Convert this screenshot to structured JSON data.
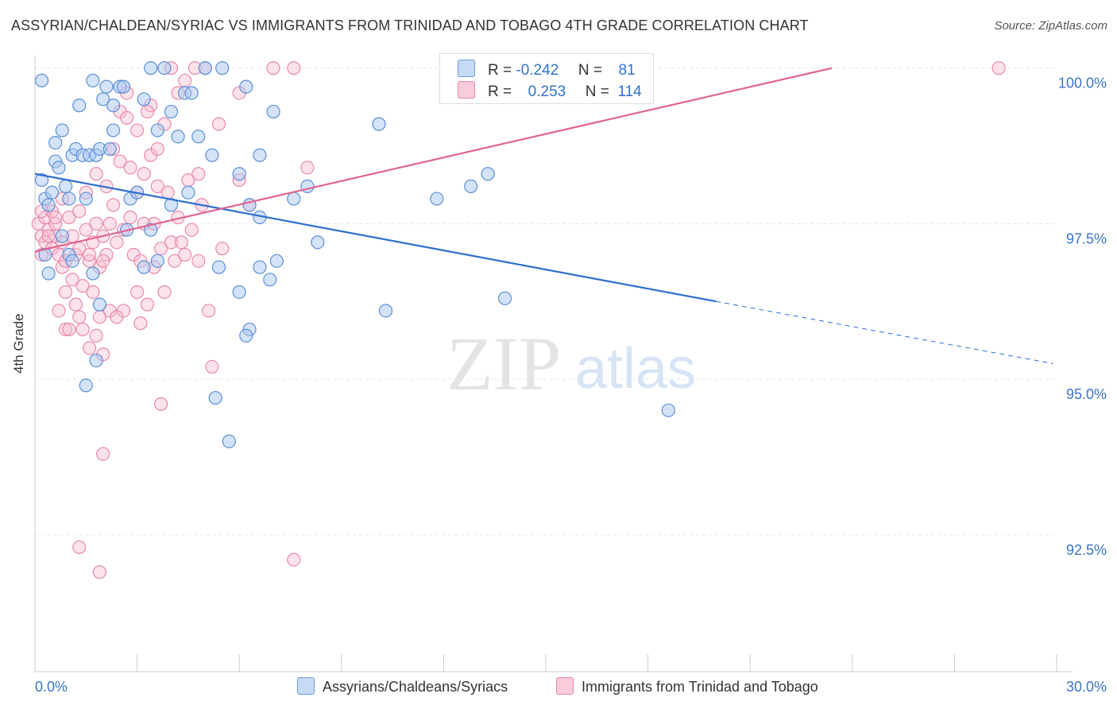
{
  "title": "ASSYRIAN/CHALDEAN/SYRIAC VS IMMIGRANTS FROM TRINIDAD AND TOBAGO 4TH GRADE CORRELATION CHART",
  "source": "Source: ZipAtlas.com",
  "watermark": {
    "zip": "ZIP",
    "atlas": "atlas"
  },
  "colors": {
    "blue_fill": "#aac8f0",
    "blue_stroke": "#5b8fd6",
    "blue_line": "#2f6fd0",
    "pink_fill": "#f7bfd2",
    "pink_stroke": "#e889aa",
    "pink_line": "#e06590",
    "axis_text": "#3a74c8",
    "grid": "#e6e6e6"
  },
  "legend": {
    "rows": [
      {
        "r_label": "R =",
        "r_value": "-0.242",
        "n_label": "N =",
        "n_value": "81"
      },
      {
        "r_label": "R =",
        "r_value": "0.253",
        "n_label": "N =",
        "n_value": "114"
      }
    ]
  },
  "chart_data": {
    "type": "scatter",
    "title": "ASSYRIAN/CHALDEAN/SYRIAC VS IMMIGRANTS FROM TRINIDAD AND TOBAGO 4TH GRADE CORRELATION CHART",
    "xlabel": "",
    "ylabel": "4th Grade",
    "xlim": [
      0,
      30
    ],
    "ylim": [
      90.3,
      100.2
    ],
    "x_tick_labels": [
      "0.0%",
      "30.0%"
    ],
    "y_ticks": [
      92.5,
      95.0,
      97.5,
      100.0
    ],
    "y_tick_labels": [
      "92.5%",
      "95.0%",
      "97.5%",
      "100.0%"
    ],
    "grid": true,
    "series": [
      {
        "name": "Assyrians/Chaldeans/Syriacs",
        "r": -0.242,
        "n": 81,
        "trend": {
          "x0": 0,
          "y0": 98.3,
          "x1": 20.0,
          "y1": 96.25,
          "dash_to_x": 29.9,
          "dash_to_y": 95.25
        },
        "points": [
          [
            0.2,
            98.2
          ],
          [
            0.3,
            97.9
          ],
          [
            0.4,
            97.8
          ],
          [
            0.5,
            98.0
          ],
          [
            0.6,
            98.5
          ],
          [
            0.6,
            98.8
          ],
          [
            0.7,
            98.4
          ],
          [
            0.8,
            99.0
          ],
          [
            0.9,
            98.1
          ],
          [
            1.0,
            97.9
          ],
          [
            1.1,
            98.6
          ],
          [
            1.2,
            98.7
          ],
          [
            1.3,
            99.4
          ],
          [
            1.4,
            98.6
          ],
          [
            1.5,
            97.9
          ],
          [
            1.6,
            98.6
          ],
          [
            1.7,
            99.8
          ],
          [
            1.8,
            98.6
          ],
          [
            1.9,
            98.7
          ],
          [
            2.0,
            99.5
          ],
          [
            2.1,
            99.7
          ],
          [
            2.2,
            98.7
          ],
          [
            2.3,
            99.0
          ],
          [
            2.5,
            99.7
          ],
          [
            2.6,
            99.7
          ],
          [
            2.8,
            97.9
          ],
          [
            3.0,
            98.0
          ],
          [
            3.2,
            99.5
          ],
          [
            3.4,
            100.0
          ],
          [
            3.6,
            99.0
          ],
          [
            3.8,
            100.0
          ],
          [
            4.0,
            99.3
          ],
          [
            4.2,
            98.9
          ],
          [
            4.4,
            99.6
          ],
          [
            4.6,
            99.6
          ],
          [
            4.8,
            98.9
          ],
          [
            5.0,
            100.0
          ],
          [
            5.2,
            98.6
          ],
          [
            5.5,
            100.0
          ],
          [
            6.0,
            98.3
          ],
          [
            6.2,
            99.7
          ],
          [
            6.6,
            98.6
          ],
          [
            7.0,
            99.3
          ],
          [
            7.6,
            97.9
          ],
          [
            8.0,
            98.1
          ],
          [
            8.3,
            97.2
          ],
          [
            0.3,
            97.0
          ],
          [
            0.4,
            96.7
          ],
          [
            0.8,
            97.3
          ],
          [
            1.0,
            97.0
          ],
          [
            1.1,
            96.9
          ],
          [
            1.7,
            96.7
          ],
          [
            2.7,
            97.4
          ],
          [
            3.2,
            96.8
          ],
          [
            3.6,
            96.9
          ],
          [
            3.4,
            97.4
          ],
          [
            4.0,
            97.8
          ],
          [
            4.5,
            98.0
          ],
          [
            5.4,
            96.8
          ],
          [
            6.3,
            97.8
          ],
          [
            6.6,
            97.6
          ],
          [
            6.0,
            96.4
          ],
          [
            6.6,
            96.8
          ],
          [
            6.9,
            96.6
          ],
          [
            7.1,
            96.9
          ],
          [
            6.3,
            95.8
          ],
          [
            6.2,
            95.7
          ],
          [
            1.5,
            94.9
          ],
          [
            1.8,
            95.3
          ],
          [
            5.3,
            94.7
          ],
          [
            5.7,
            94.0
          ],
          [
            10.1,
            99.1
          ],
          [
            11.8,
            97.9
          ],
          [
            10.3,
            96.1
          ],
          [
            12.8,
            98.1
          ],
          [
            13.3,
            98.3
          ],
          [
            13.8,
            96.3
          ],
          [
            18.6,
            94.5
          ],
          [
            1.9,
            96.2
          ],
          [
            2.3,
            99.4
          ],
          [
            0.2,
            99.8
          ]
        ]
      },
      {
        "name": "Immigrants from Trinidad and Tobago",
        "r": 0.253,
        "n": 114,
        "trend": {
          "x0": 0,
          "y0": 97.05,
          "x1": 23.4,
          "y1": 100.0
        },
        "points": [
          [
            0.1,
            97.5
          ],
          [
            0.2,
            97.3
          ],
          [
            0.2,
            97.0
          ],
          [
            0.3,
            97.6
          ],
          [
            0.3,
            97.2
          ],
          [
            0.4,
            97.4
          ],
          [
            0.5,
            97.7
          ],
          [
            0.5,
            97.1
          ],
          [
            0.6,
            97.3
          ],
          [
            0.6,
            97.5
          ],
          [
            0.7,
            97.0
          ],
          [
            0.7,
            96.1
          ],
          [
            0.8,
            97.2
          ],
          [
            0.8,
            96.8
          ],
          [
            0.9,
            96.4
          ],
          [
            0.9,
            95.8
          ],
          [
            1.0,
            97.6
          ],
          [
            1.0,
            95.8
          ],
          [
            1.1,
            97.3
          ],
          [
            1.1,
            96.6
          ],
          [
            1.2,
            97.0
          ],
          [
            1.2,
            96.2
          ],
          [
            1.3,
            97.7
          ],
          [
            1.3,
            97.1
          ],
          [
            1.4,
            96.5
          ],
          [
            1.4,
            95.8
          ],
          [
            1.5,
            98.0
          ],
          [
            1.5,
            97.4
          ],
          [
            1.6,
            96.9
          ],
          [
            1.6,
            95.5
          ],
          [
            1.7,
            97.2
          ],
          [
            1.7,
            96.4
          ],
          [
            1.8,
            98.3
          ],
          [
            1.8,
            97.5
          ],
          [
            1.9,
            96.8
          ],
          [
            1.9,
            96.0
          ],
          [
            2.0,
            97.3
          ],
          [
            2.0,
            95.4
          ],
          [
            2.1,
            98.1
          ],
          [
            2.1,
            97.0
          ],
          [
            2.2,
            97.5
          ],
          [
            2.2,
            96.1
          ],
          [
            2.3,
            98.7
          ],
          [
            2.3,
            97.8
          ],
          [
            2.4,
            97.2
          ],
          [
            2.5,
            99.3
          ],
          [
            2.5,
            98.5
          ],
          [
            2.6,
            97.4
          ],
          [
            2.6,
            96.1
          ],
          [
            2.7,
            99.6
          ],
          [
            2.8,
            98.4
          ],
          [
            2.8,
            97.6
          ],
          [
            2.9,
            97.0
          ],
          [
            3.0,
            99.0
          ],
          [
            3.0,
            98.0
          ],
          [
            3.1,
            96.9
          ],
          [
            3.1,
            95.9
          ],
          [
            3.2,
            98.3
          ],
          [
            3.2,
            97.5
          ],
          [
            3.3,
            96.2
          ],
          [
            3.4,
            99.4
          ],
          [
            3.4,
            98.6
          ],
          [
            3.5,
            97.5
          ],
          [
            3.5,
            96.8
          ],
          [
            3.6,
            98.1
          ],
          [
            3.7,
            97.1
          ],
          [
            3.7,
            94.6
          ],
          [
            3.8,
            99.1
          ],
          [
            3.8,
            96.4
          ],
          [
            3.9,
            98.0
          ],
          [
            4.0,
            100.0
          ],
          [
            4.0,
            97.2
          ],
          [
            4.1,
            96.9
          ],
          [
            4.2,
            99.6
          ],
          [
            4.2,
            97.6
          ],
          [
            4.3,
            97.2
          ],
          [
            4.4,
            99.8
          ],
          [
            4.5,
            98.2
          ],
          [
            4.6,
            97.4
          ],
          [
            4.7,
            100.0
          ],
          [
            4.8,
            96.9
          ],
          [
            4.9,
            97.8
          ],
          [
            5.0,
            100.0
          ],
          [
            5.1,
            96.1
          ],
          [
            5.2,
            95.2
          ],
          [
            5.4,
            99.1
          ],
          [
            5.5,
            97.1
          ],
          [
            6.0,
            98.2
          ],
          [
            6.3,
            97.8
          ],
          [
            6.0,
            99.6
          ],
          [
            7.0,
            100.0
          ],
          [
            7.6,
            100.0
          ],
          [
            8.0,
            98.4
          ],
          [
            0.4,
            97.3
          ],
          [
            0.6,
            97.6
          ],
          [
            0.9,
            96.9
          ],
          [
            1.3,
            96.0
          ],
          [
            1.8,
            95.7
          ],
          [
            2.0,
            93.8
          ],
          [
            1.3,
            92.3
          ],
          [
            1.9,
            91.9
          ],
          [
            7.6,
            92.1
          ],
          [
            3.3,
            99.3
          ],
          [
            3.6,
            98.7
          ],
          [
            2.7,
            99.2
          ],
          [
            4.4,
            97.0
          ],
          [
            4.8,
            98.3
          ],
          [
            28.3,
            100.0
          ],
          [
            0.2,
            97.7
          ],
          [
            0.8,
            97.9
          ],
          [
            1.6,
            97.0
          ],
          [
            2.4,
            96.0
          ],
          [
            3.0,
            96.4
          ],
          [
            2.0,
            96.9
          ]
        ]
      }
    ]
  },
  "bottom_legend": {
    "items": [
      {
        "label": "Assyrians/Chaldeans/Syriacs"
      },
      {
        "label": "Immigrants from Trinidad and Tobago"
      }
    ]
  }
}
